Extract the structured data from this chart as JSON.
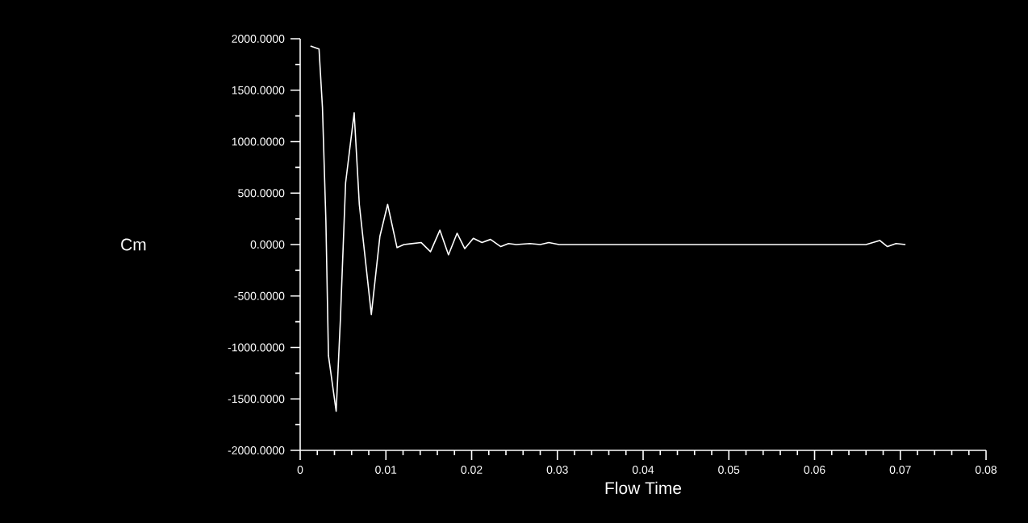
{
  "chart_data": {
    "type": "line",
    "xlabel": "Flow Time",
    "ylabel": "Cm",
    "x": [
      0.0012,
      0.0022,
      0.0026,
      0.003,
      0.0033,
      0.0042,
      0.0047,
      0.0053,
      0.0063,
      0.0069,
      0.0083,
      0.0093,
      0.0102,
      0.0113,
      0.0121,
      0.0141,
      0.0152,
      0.0163,
      0.0173,
      0.0183,
      0.0192,
      0.0202,
      0.0212,
      0.0222,
      0.0234,
      0.0243,
      0.0252,
      0.0268,
      0.028,
      0.029,
      0.0302,
      0.066,
      0.0676,
      0.0685,
      0.0695,
      0.0706
    ],
    "series": [
      {
        "color": "#ffffff",
        "values": [
          1930,
          1900,
          1330,
          230,
          -1080,
          -1620,
          -710,
          600,
          1280,
          390,
          -680,
          80,
          390,
          -30,
          0,
          20,
          -70,
          140,
          -100,
          110,
          -40,
          60,
          20,
          50,
          -20,
          10,
          0,
          10,
          0,
          20,
          0,
          0,
          40,
          -20,
          10,
          0
        ]
      }
    ],
    "xlim": [
      0,
      0.08
    ],
    "xticks": [
      0,
      0.01,
      0.02,
      0.03,
      0.04,
      0.05,
      0.06,
      0.07,
      0.08
    ],
    "ylim": [
      -2000,
      2000
    ],
    "yticks": [
      {
        "value": -2000,
        "label": "-2000.0000"
      },
      {
        "value": -1500,
        "label": "-1500.0000"
      },
      {
        "value": -1000,
        "label": "-1000.0000"
      },
      {
        "value": -500,
        "label": "-500.0000"
      },
      {
        "value": 0,
        "label": "0.0000"
      },
      {
        "value": 500,
        "label": "500.0000"
      },
      {
        "value": 1000,
        "label": "1000.0000"
      },
      {
        "value": 1500,
        "label": "1500.0000"
      },
      {
        "value": 2000,
        "label": "2000.0000"
      }
    ],
    "grid": false,
    "marker": "none",
    "line_style": "solid"
  }
}
